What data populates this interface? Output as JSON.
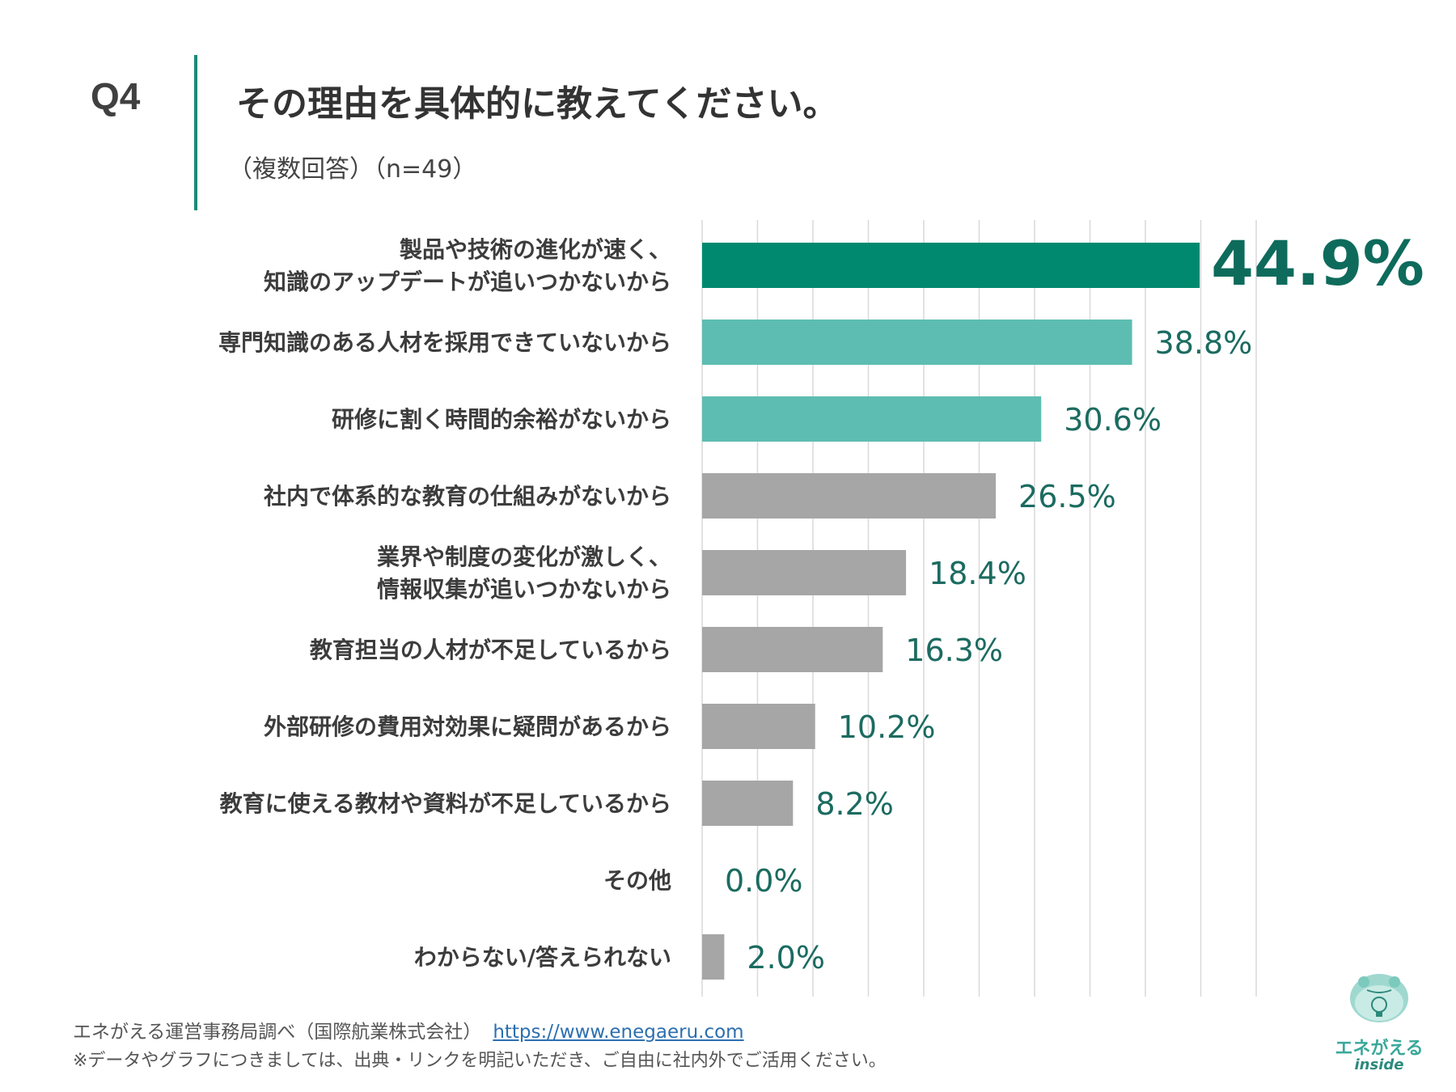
{
  "header": {
    "question_number": "Q4",
    "title": "その理由を具体的に教えてください。",
    "subtitle": "（複数回答）（n=49）"
  },
  "chart_data": {
    "type": "bar",
    "orientation": "horizontal",
    "title": "その理由を具体的に教えてください。",
    "xlim": [
      0,
      50
    ],
    "grid": true,
    "unit": "%",
    "categories": [
      [
        "製品や技術の進化が速く、",
        "知識のアップデートが追いつかないから"
      ],
      [
        "専門知識のある人材を採用できていないから"
      ],
      [
        "研修に割く時間的余裕がないから"
      ],
      [
        "社内で体系的な教育の仕組みがないから"
      ],
      [
        "業界や制度の変化が激しく、",
        "情報収集が追いつかないから"
      ],
      [
        "教育担当の人材が不足しているから"
      ],
      [
        "外部研修の費用対効果に疑問があるから"
      ],
      [
        "教育に使える教材や資料が不足しているから"
      ],
      [
        "その他"
      ],
      [
        "わからない/答えられない"
      ]
    ],
    "values": [
      44.9,
      38.8,
      30.6,
      26.5,
      18.4,
      16.3,
      10.2,
      8.2,
      0.0,
      2.0
    ],
    "value_labels": [
      "44.9%",
      "38.8%",
      "30.6%",
      "26.5%",
      "18.4%",
      "16.3%",
      "10.2%",
      "8.2%",
      "0.0%",
      "2.0%"
    ],
    "bar_colors": [
      "#00896f",
      "#5ebdb2",
      "#5ebdb2",
      "#a6a6a6",
      "#a6a6a6",
      "#a6a6a6",
      "#a6a6a6",
      "#a6a6a6",
      "#a6a6a6",
      "#a6a6a6"
    ],
    "label_color": "#1b6b60",
    "highlight_label_color": "#0e6b5c",
    "grid_color": "#d9d9d9"
  },
  "footer": {
    "source": "エネがえる運営事務局調べ（国際航業株式会社）",
    "url": "https://www.enegaeru.com",
    "note": "※データやグラフにつきましては、出典・リンクを明記いただき、ご自由に社内外でご活用ください。"
  },
  "logo": {
    "name": "エネがえる",
    "sub": "inside",
    "accent": "#3aa89a"
  }
}
